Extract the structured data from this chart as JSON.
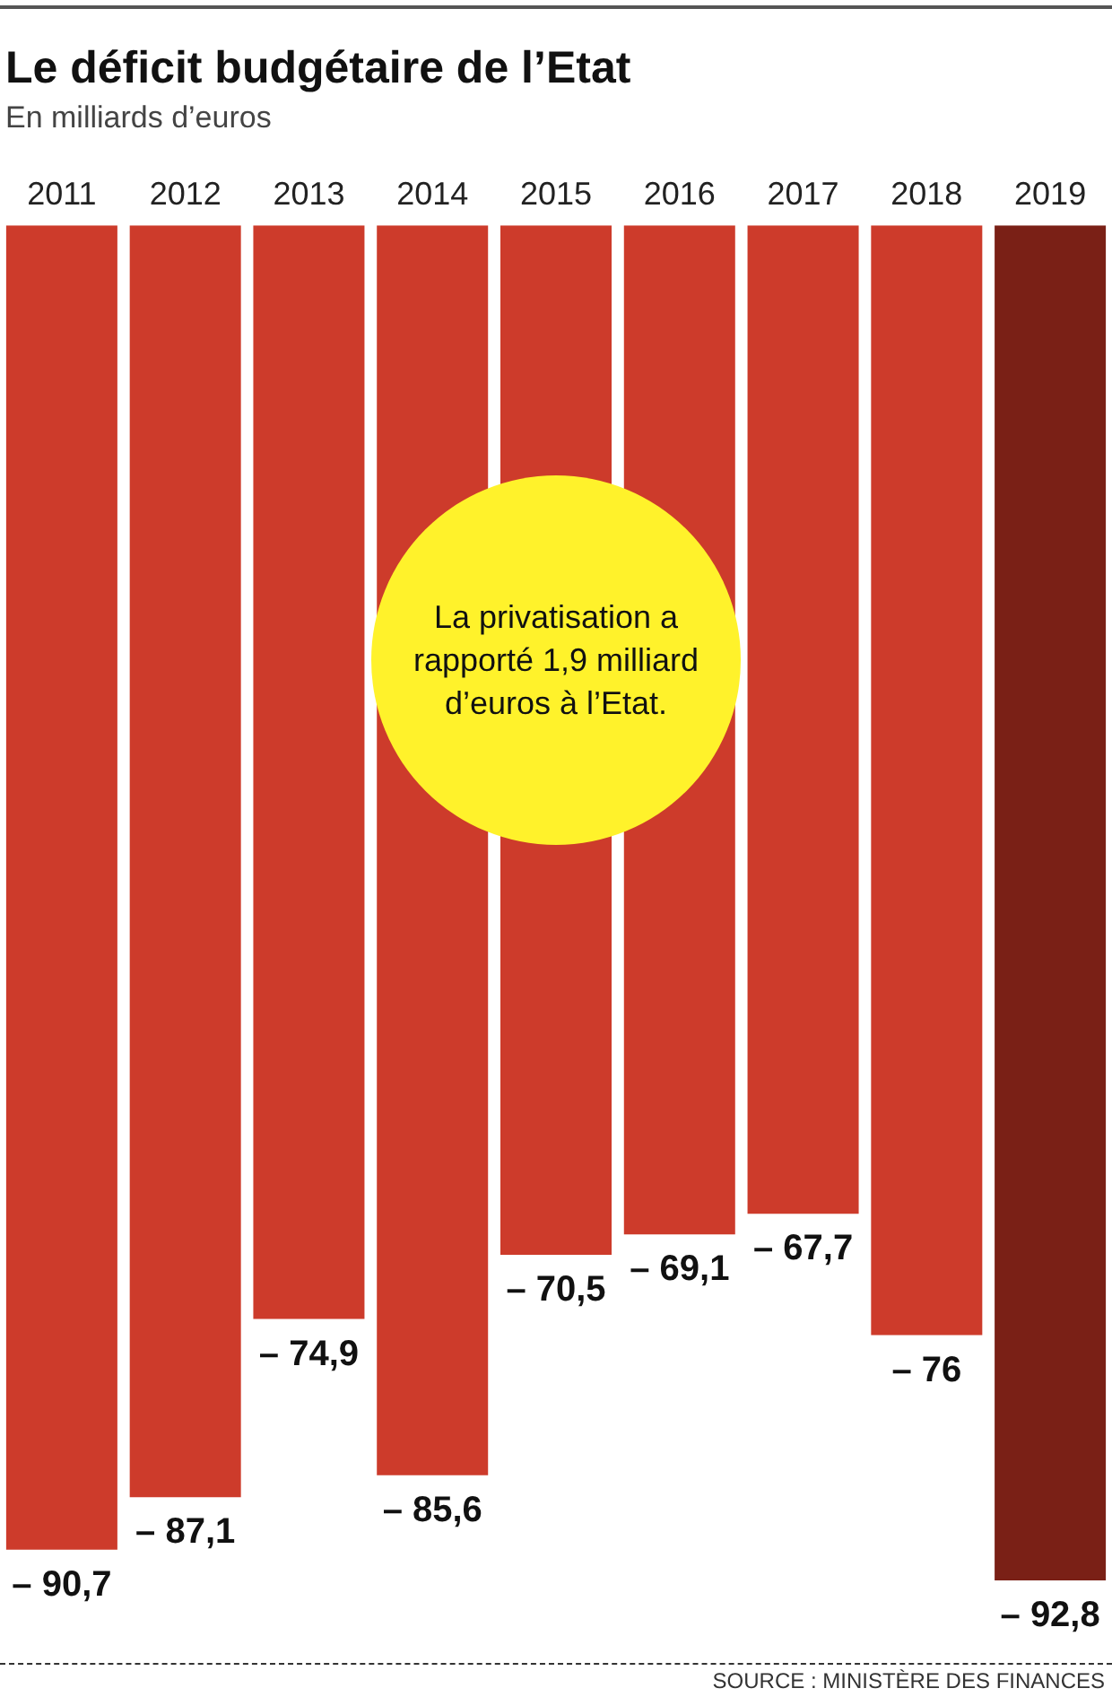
{
  "chart_data": {
    "type": "bar",
    "title": "Le déficit budgétaire de l’Etat",
    "subtitle": "En milliards d’euros",
    "categories": [
      "2011",
      "2012",
      "2013",
      "2014",
      "2015",
      "2016",
      "2017",
      "2018",
      "2019"
    ],
    "values": [
      -90.7,
      -87.1,
      -74.9,
      -85.6,
      -70.5,
      -69.1,
      -67.7,
      -76,
      -92.8
    ],
    "colors": [
      "#cd3b2b",
      "#cd3b2b",
      "#cd3b2b",
      "#cd3b2b",
      "#cd3b2b",
      "#cd3b2b",
      "#cd3b2b",
      "#cd3b2b",
      "#7a2016"
    ],
    "value_labels": [
      "– 90,7",
      "– 87,1",
      "– 74,9",
      "– 85,6",
      "– 70,5",
      "– 69,1",
      "– 67,7",
      "– 76",
      "– 92,8"
    ],
    "ylim": [
      -92.8,
      0
    ],
    "tick_labels": "x",
    "annotations": [
      "La privatisation a rapporté 1,9 milliard d’euros à l’Etat.",
      "SOURCE : MINISTÈRE DES FINANCES"
    ]
  }
}
